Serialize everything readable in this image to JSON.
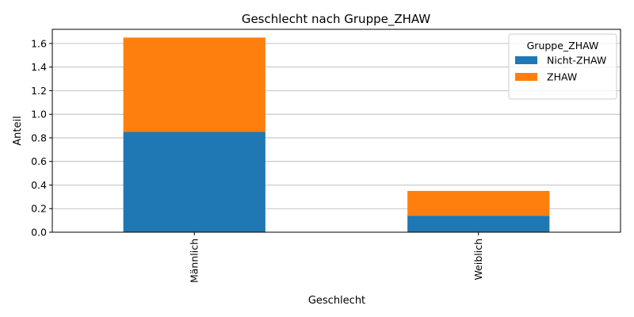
{
  "chart_data": {
    "type": "bar",
    "stacked": true,
    "title": "Geschlecht nach Gruppe_ZHAW",
    "xlabel": "Geschlecht",
    "ylabel": "Anteil",
    "categories": [
      "Männlich",
      "Weiblich"
    ],
    "series": [
      {
        "name": "Nicht-ZHAW",
        "values": [
          0.85,
          0.14
        ],
        "color": "#1f77b4"
      },
      {
        "name": "ZHAW",
        "values": [
          0.8,
          0.21
        ],
        "color": "#ff7f0e"
      }
    ],
    "ylim": [
      0,
      1.72
    ],
    "yticks": [
      "0.0",
      "0.2",
      "0.4",
      "0.6",
      "0.8",
      "1.0",
      "1.2",
      "1.4",
      "1.6"
    ],
    "grid": "horizontal",
    "legend": {
      "title": "Gruppe_ZHAW",
      "placement": "top-right"
    }
  }
}
